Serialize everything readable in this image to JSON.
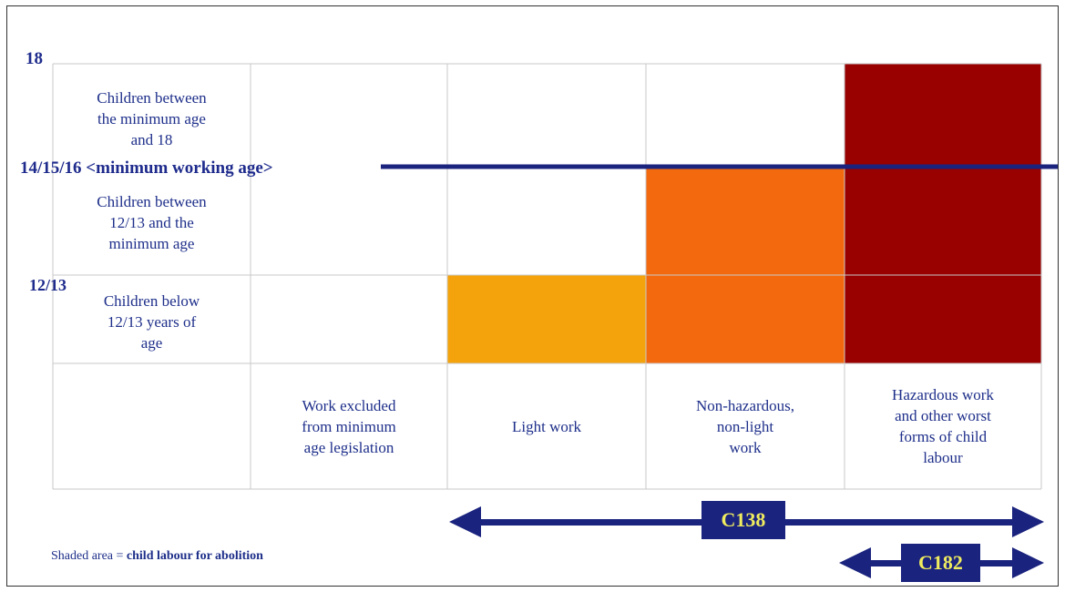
{
  "age_labels": {
    "top": "18",
    "middle": "14/15/16 <minimum working age>",
    "lower": "12/13"
  },
  "rows": [
    {
      "label": "Children between\nthe minimum age\nand 18"
    },
    {
      "label": "Children between\n12/13 and the\nminimum age"
    },
    {
      "label": "Children below\n12/13 years of\nage"
    }
  ],
  "columns": [
    {
      "label": "Work excluded\nfrom minimum\nage legislation"
    },
    {
      "label": "Light work"
    },
    {
      "label": "Non-hazardous,\nnon-light\nwork"
    },
    {
      "label": "Hazardous work\nand other worst\nforms of child\nlabour"
    }
  ],
  "conventions": {
    "c138": "C138",
    "c182": "C182"
  },
  "legend": {
    "prefix": "Shaded area = ",
    "emphasis": "child labour for abolition"
  },
  "colors": {
    "light_work": "#f5a30c",
    "non_hazardous": "#f36a0e",
    "hazardous": "#990000",
    "line_and_arrows": "#1a237e",
    "convention_text": "#f0ec5f",
    "text": "#1e2f8a",
    "grid": "#c8c8c8"
  }
}
